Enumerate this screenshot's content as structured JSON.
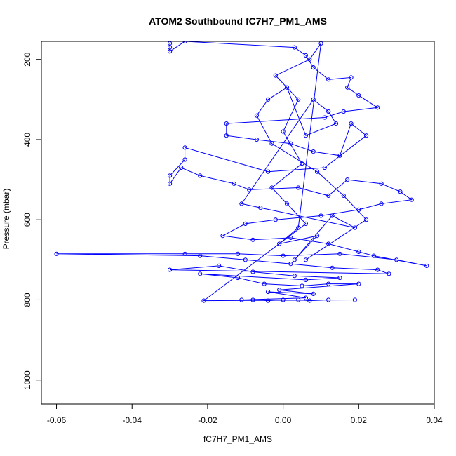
{
  "chart_data": {
    "type": "line",
    "title": "ATOM2 Southbound fC7H7_PM1_AMS",
    "xlabel": "fC7H7_PM1_AMS",
    "ylabel": "Pressure (mbar)",
    "xlim": [
      -0.064,
      0.04
    ],
    "ylim": [
      1060,
      155
    ],
    "y_reversed": true,
    "x_ticks": [
      -0.06,
      -0.04,
      -0.02,
      0.0,
      0.02,
      0.04
    ],
    "x_tick_labels": [
      "-0.06",
      "-0.04",
      "-0.02",
      "0.00",
      "0.02",
      "0.04"
    ],
    "y_ticks": [
      200,
      400,
      600,
      800,
      1000
    ],
    "y_tick_labels": [
      "200",
      "400",
      "600",
      "800",
      "1000"
    ],
    "grid": false,
    "series": [
      {
        "color": "#0000ff",
        "marker": "open-circle",
        "line": true,
        "points": [
          [
            -0.03,
            160
          ],
          [
            -0.03,
            170
          ],
          [
            -0.03,
            180
          ],
          [
            -0.026,
            155
          ],
          [
            0.003,
            170
          ],
          [
            0.006,
            190
          ],
          [
            0.008,
            220
          ],
          [
            0.012,
            250
          ],
          [
            0.018,
            245
          ],
          [
            0.017,
            270
          ],
          [
            0.02,
            290
          ],
          [
            0.025,
            320
          ],
          [
            0.016,
            330
          ],
          [
            0.011,
            345
          ],
          [
            -0.015,
            360
          ],
          [
            -0.015,
            390
          ],
          [
            -0.007,
            400
          ],
          [
            0.002,
            410
          ],
          [
            0.008,
            430
          ],
          [
            0.015,
            440
          ],
          [
            0.018,
            360
          ],
          [
            0.022,
            390
          ],
          [
            0.011,
            470
          ],
          [
            -0.004,
            480
          ],
          [
            -0.026,
            420
          ],
          [
            -0.026,
            450
          ],
          [
            -0.03,
            490
          ],
          [
            -0.03,
            510
          ],
          [
            -0.027,
            470
          ],
          [
            -0.022,
            490
          ],
          [
            -0.013,
            510
          ],
          [
            -0.009,
            525
          ],
          [
            0.004,
            520
          ],
          [
            0.012,
            540
          ],
          [
            0.017,
            500
          ],
          [
            0.026,
            510
          ],
          [
            0.031,
            530
          ],
          [
            0.034,
            550
          ],
          [
            0.026,
            560
          ],
          [
            0.02,
            575
          ],
          [
            0.01,
            590
          ],
          [
            -0.002,
            600
          ],
          [
            -0.01,
            610
          ],
          [
            -0.016,
            640
          ],
          [
            -0.008,
            650
          ],
          [
            0.002,
            645
          ],
          [
            0.012,
            660
          ],
          [
            0.02,
            680
          ],
          [
            0.024,
            690
          ],
          [
            0.038,
            715
          ],
          [
            0.03,
            700
          ],
          [
            0.015,
            685
          ],
          [
            0.0,
            690
          ],
          [
            -0.012,
            685
          ],
          [
            -0.026,
            685
          ],
          [
            -0.06,
            685
          ],
          [
            -0.022,
            690
          ],
          [
            -0.01,
            700
          ],
          [
            0.002,
            710
          ],
          [
            0.013,
            720
          ],
          [
            0.025,
            725
          ],
          [
            0.028,
            735
          ],
          [
            -0.03,
            725
          ],
          [
            -0.017,
            715
          ],
          [
            -0.008,
            730
          ],
          [
            0.003,
            740
          ],
          [
            0.015,
            745
          ],
          [
            0.006,
            750
          ],
          [
            -0.022,
            735
          ],
          [
            -0.012,
            745
          ],
          [
            -0.005,
            760
          ],
          [
            0.005,
            765
          ],
          [
            0.012,
            760
          ],
          [
            0.02,
            760
          ],
          [
            -0.001,
            775
          ],
          [
            0.008,
            785
          ],
          [
            -0.004,
            780
          ],
          [
            0.006,
            795
          ],
          [
            -0.011,
            800
          ],
          [
            -0.008,
            800
          ],
          [
            -0.004,
            802
          ],
          [
            0.0,
            800
          ],
          [
            0.004,
            800
          ],
          [
            0.007,
            802
          ],
          [
            0.012,
            800
          ],
          [
            0.019,
            800
          ],
          [
            -0.021,
            802
          ],
          [
            0.006,
            610
          ],
          [
            0.001,
            560
          ],
          [
            -0.003,
            520
          ],
          [
            0.005,
            460
          ],
          [
            0.0,
            380
          ],
          [
            0.004,
            300
          ],
          [
            -0.002,
            240
          ],
          [
            0.007,
            200
          ],
          [
            0.01,
            160
          ],
          [
            0.004,
            620
          ],
          [
            -0.001,
            660
          ],
          [
            0.009,
            640
          ],
          [
            0.003,
            700
          ],
          [
            0.013,
            590
          ],
          [
            0.019,
            620
          ],
          [
            -0.006,
            570
          ],
          [
            -0.011,
            560
          ],
          [
            0.008,
            300
          ],
          [
            0.012,
            330
          ],
          [
            0.014,
            360
          ],
          [
            0.006,
            390
          ],
          [
            0.001,
            270
          ],
          [
            -0.004,
            300
          ],
          [
            -0.007,
            340
          ],
          [
            -0.003,
            410
          ],
          [
            0.009,
            480
          ],
          [
            0.016,
            540
          ],
          [
            0.022,
            600
          ],
          [
            0.006,
            700
          ]
        ]
      }
    ]
  }
}
